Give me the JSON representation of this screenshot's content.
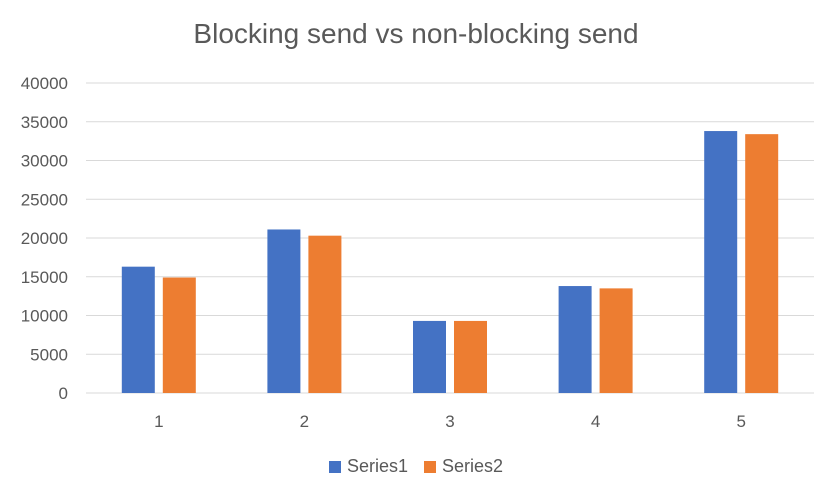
{
  "chart_data": {
    "type": "bar",
    "title": "Blocking send vs non-blocking send",
    "xlabel": "",
    "ylabel": "",
    "categories": [
      "1",
      "2",
      "3",
      "4",
      "5"
    ],
    "series": [
      {
        "name": "Series1",
        "color": "#4472C4",
        "values": [
          16300,
          21100,
          9300,
          13800,
          33800
        ]
      },
      {
        "name": "Series2",
        "color": "#ED7D31",
        "values": [
          14900,
          20300,
          9300,
          13500,
          33400
        ]
      }
    ],
    "ylim": [
      0,
      40000
    ],
    "yticks": [
      0,
      5000,
      10000,
      15000,
      20000,
      25000,
      30000,
      35000,
      40000
    ],
    "grid": true,
    "legend_position": "bottom"
  }
}
